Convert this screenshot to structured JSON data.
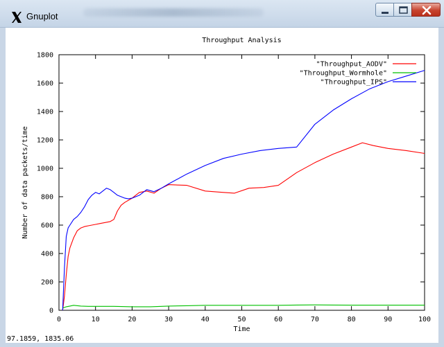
{
  "window": {
    "title": "Gnuplot",
    "icon": "x11-icon",
    "controls": [
      "minimize-icon",
      "maximize-icon",
      "close-icon"
    ]
  },
  "status_bar": {
    "coords": "97.1859,  1835.06"
  },
  "colors": {
    "aodv": "#ff0000",
    "wormhole": "#00c000",
    "ips": "#0000ff",
    "axis": "#000000",
    "grid": "#a0a0a0"
  },
  "chart_data": {
    "type": "line",
    "title": "Throughput Analysis",
    "xlabel": "Time",
    "ylabel": "Number of data packets/time",
    "xlim": [
      0,
      100
    ],
    "ylim": [
      0,
      1800
    ],
    "xticks": [
      0,
      10,
      20,
      30,
      40,
      50,
      60,
      70,
      80,
      90,
      100
    ],
    "yticks": [
      0,
      200,
      400,
      600,
      800,
      1000,
      1200,
      1400,
      1600,
      1800
    ],
    "grid": false,
    "legend_position": "top-right",
    "series": [
      {
        "name": "\"Throughput_AODV\"",
        "color_key": "aodv",
        "x": [
          1,
          1.5,
          2,
          2.5,
          3,
          4,
          5,
          6,
          7,
          8,
          9,
          10,
          11,
          12,
          14,
          15,
          16,
          17,
          18,
          20,
          22,
          24,
          26,
          28,
          30,
          35,
          40,
          45,
          48,
          52,
          56,
          60,
          65,
          70,
          75,
          80,
          83,
          86,
          90,
          95,
          100
        ],
        "y": [
          0,
          100,
          250,
          380,
          440,
          510,
          560,
          580,
          590,
          595,
          600,
          605,
          610,
          615,
          625,
          640,
          700,
          740,
          760,
          790,
          830,
          840,
          825,
          860,
          885,
          880,
          840,
          830,
          825,
          860,
          865,
          880,
          970,
          1040,
          1100,
          1150,
          1180,
          1160,
          1140,
          1125,
          1105
        ]
      },
      {
        "name": "\"Throughput_Wormhole\"",
        "color_key": "wormhole",
        "x": [
          1,
          2,
          3,
          4,
          6,
          8,
          10,
          15,
          20,
          25,
          30,
          35,
          40,
          45,
          50,
          55,
          60,
          65,
          70,
          75,
          80,
          85,
          90,
          95,
          100
        ],
        "y": [
          15,
          25,
          30,
          35,
          30,
          28,
          28,
          28,
          25,
          25,
          30,
          32,
          35,
          35,
          35,
          35,
          35,
          37,
          38,
          37,
          36,
          36,
          36,
          36,
          36
        ]
      },
      {
        "name": "\"Throughput_IPS\"",
        "color_key": "ips",
        "x": [
          1,
          1.5,
          2,
          2.5,
          3,
          4,
          5,
          6,
          7,
          8,
          9,
          10,
          11,
          12,
          13,
          14,
          15,
          16,
          17,
          18,
          19,
          20,
          22,
          24,
          26,
          28,
          30,
          35,
          40,
          45,
          50,
          55,
          60,
          65,
          70,
          75,
          80,
          85,
          90,
          95,
          100
        ],
        "y": [
          0,
          300,
          520,
          580,
          600,
          640,
          660,
          690,
          730,
          780,
          810,
          830,
          820,
          840,
          860,
          850,
          830,
          810,
          800,
          790,
          785,
          790,
          810,
          850,
          835,
          860,
          890,
          960,
          1020,
          1070,
          1100,
          1125,
          1140,
          1150,
          1310,
          1410,
          1490,
          1560,
          1610,
          1650,
          1690
        ]
      }
    ]
  }
}
